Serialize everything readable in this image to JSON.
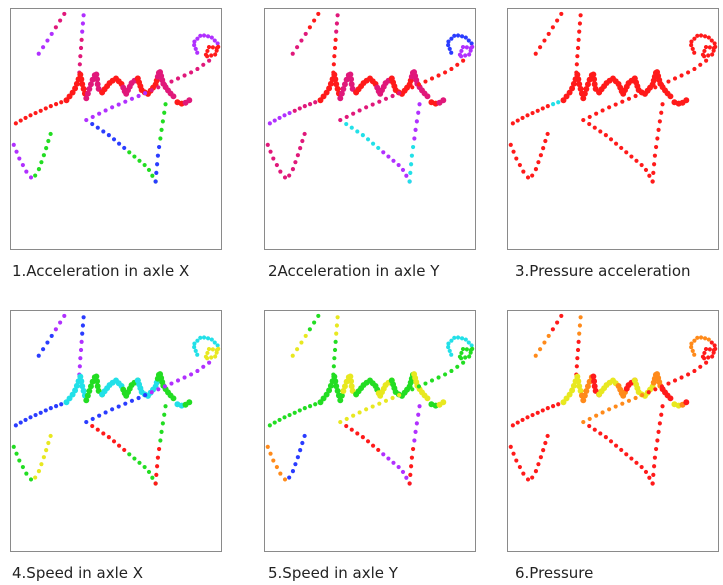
{
  "panels": [
    {
      "caption": "1.Acceleration in axle X",
      "scheme": "multi-x"
    },
    {
      "caption": "2Acceleration in axle Y",
      "scheme": "multi-y"
    },
    {
      "caption": "3.Pressure acceleration",
      "scheme": "red"
    },
    {
      "caption": "4.Speed in axle X",
      "scheme": "speed-x"
    },
    {
      "caption": "5.Speed in axle Y",
      "scheme": "speed-y"
    },
    {
      "caption": "6.Pressure",
      "scheme": "pressure"
    }
  ],
  "colors": {
    "red": "#ff1a1a",
    "magenta": "#e0187a",
    "violet": "#b030ff",
    "blue": "#2a3cff",
    "cyan": "#22e0e8",
    "green": "#22dd22",
    "yellow": "#e8e820",
    "orange": "#ff8a1a"
  }
}
